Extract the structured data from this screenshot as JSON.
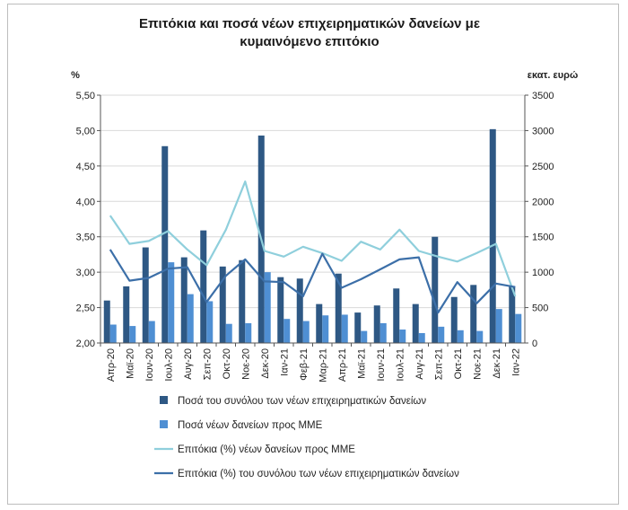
{
  "chart_data": {
    "type": "bar",
    "title_lines": [
      "Επιτόκια και ποσά νέων επιχειρηματικών δανείων με",
      "κυμαινόμενο επιτόκιο"
    ],
    "y_left_unit": "%",
    "y_right_unit": "εκατ. ευρώ",
    "y_left_ticks": [
      "2,00",
      "2,50",
      "3,00",
      "3,50",
      "4,00",
      "4,50",
      "5,00",
      "5,50"
    ],
    "y_right_ticks": [
      "0",
      "500",
      "1000",
      "1500",
      "2000",
      "2500",
      "3000",
      "3500"
    ],
    "ylim_left": [
      2.0,
      5.5
    ],
    "ylim_right": [
      0,
      3500
    ],
    "categories": [
      "Απρ-20",
      "Μαϊ-20",
      "Ιουν-20",
      "Ιουλ-20",
      "Αυγ-20",
      "Σεπ-20",
      "Οκτ-20",
      "Νοε-20",
      "Δεκ-20",
      "Ιαν-21",
      "Φεβ-21",
      "Μαρ-21",
      "Απρ-21",
      "Μαϊ-21",
      "Ιουν-21",
      "Ιουλ-21",
      "Αυγ-21",
      "Σεπ-21",
      "Οκτ-21",
      "Νοε-21",
      "Δεκ-21",
      "Ιαν-22"
    ],
    "series": [
      {
        "name": "Ποσά του συνόλου των νέων επιχειρηματικών δανείων",
        "kind": "bar",
        "axis": "right",
        "color": "#2e5884",
        "values": [
          600,
          800,
          1350,
          2780,
          1210,
          1590,
          1080,
          1170,
          2930,
          930,
          910,
          550,
          980,
          430,
          530,
          770,
          550,
          1500,
          650,
          820,
          3020,
          800
        ]
      },
      {
        "name": "Ποσά νέων δανείων προς ΜΜΕ",
        "kind": "bar",
        "axis": "right",
        "color": "#4f8fd3",
        "values": [
          260,
          240,
          310,
          1140,
          690,
          590,
          270,
          280,
          1000,
          340,
          310,
          390,
          400,
          170,
          280,
          190,
          140,
          230,
          180,
          170,
          480,
          410
        ]
      },
      {
        "name": "Επιτόκια (%) νέων δανείων προς ΜΜΕ",
        "kind": "line",
        "axis": "left",
        "color": "#8fcfdc",
        "values": [
          3.8,
          3.4,
          3.44,
          3.58,
          3.32,
          3.1,
          3.6,
          4.28,
          3.3,
          3.22,
          3.36,
          3.27,
          3.16,
          3.43,
          3.32,
          3.6,
          3.3,
          3.22,
          3.15,
          3.27,
          3.4,
          2.66
        ]
      },
      {
        "name": "Επιτόκια (%) του συνόλου των νέων επιχειρηματικών δανείων",
        "kind": "line",
        "axis": "left",
        "color": "#3c6fa8",
        "values": [
          3.32,
          2.88,
          2.92,
          3.05,
          3.07,
          2.58,
          2.95,
          3.18,
          2.87,
          2.86,
          2.66,
          3.26,
          2.78,
          2.9,
          3.04,
          3.18,
          3.21,
          2.43,
          2.86,
          2.56,
          2.84,
          2.79
        ]
      }
    ],
    "grid": true,
    "legend_position": "bottom"
  }
}
